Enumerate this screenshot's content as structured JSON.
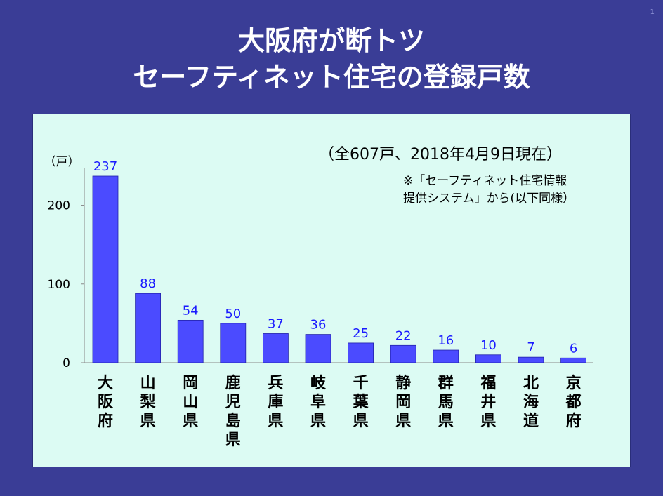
{
  "slide_number": "1",
  "title_line1": "大阪府が断トツ",
  "title_line2": "セーフティネット住宅の登録戸数",
  "note_main": "（全607戸、2018年4月9日現在）",
  "note_sub_line1": "※「セーフティネット住宅情報",
  "note_sub_line2": "提供システム」から(以下同様）",
  "colors": {
    "background": "#3a3d96",
    "panel": "#dcfbf3",
    "bar": "#4b4bff",
    "value_label": "#1a1aff"
  },
  "chart_data": {
    "type": "bar",
    "categories": [
      "大阪府",
      "山梨県",
      "岡山県",
      "鹿児島県",
      "兵庫県",
      "岐阜県",
      "千葉県",
      "静岡県",
      "群馬県",
      "福井県",
      "北海道",
      "京都府"
    ],
    "values": [
      237,
      88,
      54,
      50,
      37,
      36,
      25,
      22,
      16,
      10,
      7,
      6
    ],
    "y_unit": "（戸）",
    "yticks": [
      0,
      100,
      200
    ],
    "ylim": [
      0,
      237
    ],
    "grid": false,
    "legend": "none"
  }
}
